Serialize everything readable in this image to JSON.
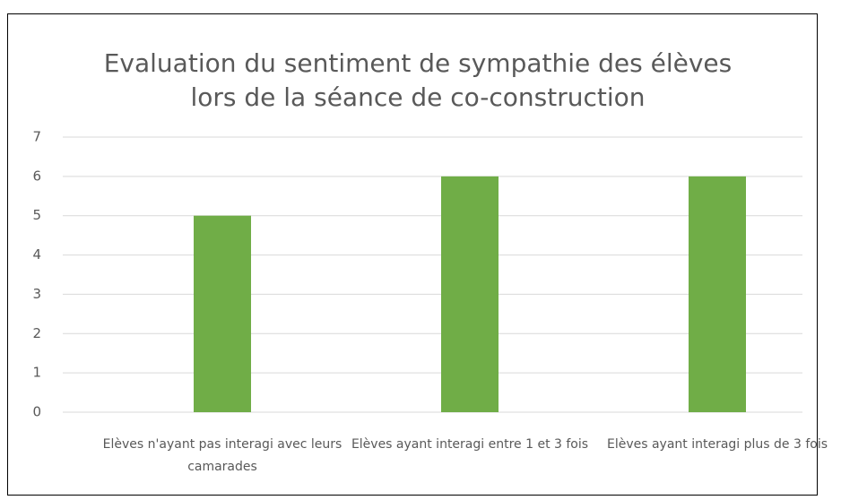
{
  "chart_data": {
    "type": "bar",
    "title": [
      "Evaluation du sentiment de sympathie des élèves",
      "lors de la séance de co-construction"
    ],
    "categories": [
      "Elèves n'ayant pas interagi avec leurs camarades",
      "Elèves ayant interagi entre 1 et 3 fois",
      "Elèves ayant interagi plus de 3 fois"
    ],
    "values": [
      5,
      6,
      6
    ],
    "color": "#70ad47",
    "ylim": [
      0,
      7
    ],
    "yticks": [
      0,
      1,
      2,
      3,
      4,
      5,
      6,
      7
    ],
    "grid": true
  }
}
